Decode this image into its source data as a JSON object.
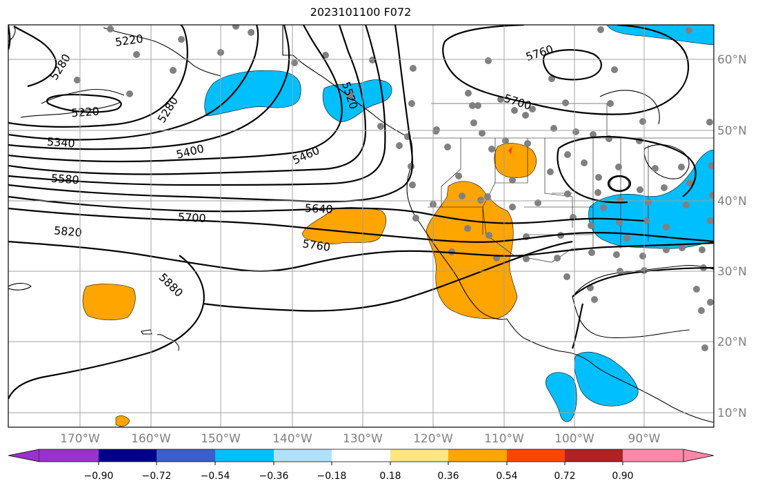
{
  "title": "2023101100 F072",
  "map": {
    "lon_ticks": [
      "170°W",
      "160°W",
      "150°W",
      "140°W",
      "130°W",
      "120°W",
      "110°W",
      "100°W",
      "90°W"
    ],
    "lat_ticks": [
      "60°N",
      "50°N",
      "40°N",
      "30°N",
      "20°N",
      "10°N"
    ],
    "contour_labels": [
      "5220",
      "5220",
      "5280",
      "5280",
      "5340",
      "5400",
      "5460",
      "5520",
      "5580",
      "5640",
      "5700",
      "5700",
      "5760",
      "5760",
      "5820",
      "5880"
    ],
    "colors": {
      "positive_shade": "#ffa500",
      "negative_shade": "#00bfff",
      "station_dot": "#808080",
      "grid": "#a0a0a0"
    }
  },
  "colorbar": {
    "ticks": [
      "−0.90",
      "−0.72",
      "−0.54",
      "−0.36",
      "−0.18",
      "0.18",
      "0.36",
      "0.54",
      "0.72",
      "0.90"
    ],
    "colors": [
      "#9932cc",
      "#00008b",
      "#3a5fcd",
      "#00bfff",
      "#b0e2ff",
      "#ffffff",
      "#ffe680",
      "#ffa500",
      "#ff4500",
      "#b22222",
      "#ff88aa"
    ]
  }
}
